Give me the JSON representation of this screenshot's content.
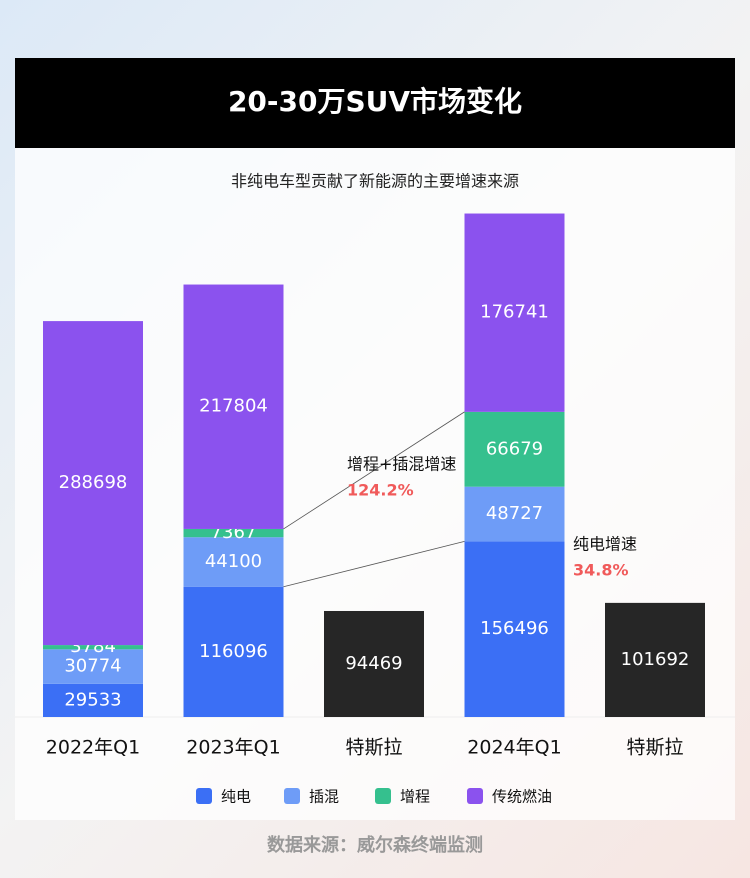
{
  "chart_data": {
    "type": "stacked_bar",
    "title": "20-30万SUV市场变化",
    "subtitle": "非纯电车型贡献了新能源的主要增速来源",
    "categories": [
      "2022年Q1",
      "2023年Q1",
      "特斯拉",
      "2024年Q1",
      "特斯拉"
    ],
    "series": [
      {
        "name": "纯电",
        "color": "#3b6ff5",
        "values": [
          29533,
          116096,
          94469,
          156496,
          101692
        ],
        "point_colors": [
          null,
          null,
          "#262626",
          null,
          "#262626"
        ]
      },
      {
        "name": "插混",
        "color": "#6e9cf7",
        "values": [
          30774,
          44100,
          null,
          48727,
          null
        ]
      },
      {
        "name": "增程",
        "color": "#35c08e",
        "values": [
          3784,
          7367,
          null,
          66679,
          null
        ]
      },
      {
        "name": "传统燃油",
        "color": "#8b52ee",
        "values": [
          288698,
          217804,
          null,
          176741,
          null
        ]
      }
    ],
    "ylim": [
      0,
      450000
    ],
    "annotations": [
      {
        "text": "增程+插混增速",
        "value_label": "124.2%"
      },
      {
        "text": "纯电增速",
        "value_label": "34.8%"
      }
    ],
    "source": "数据来源：威尔森终端监测"
  }
}
